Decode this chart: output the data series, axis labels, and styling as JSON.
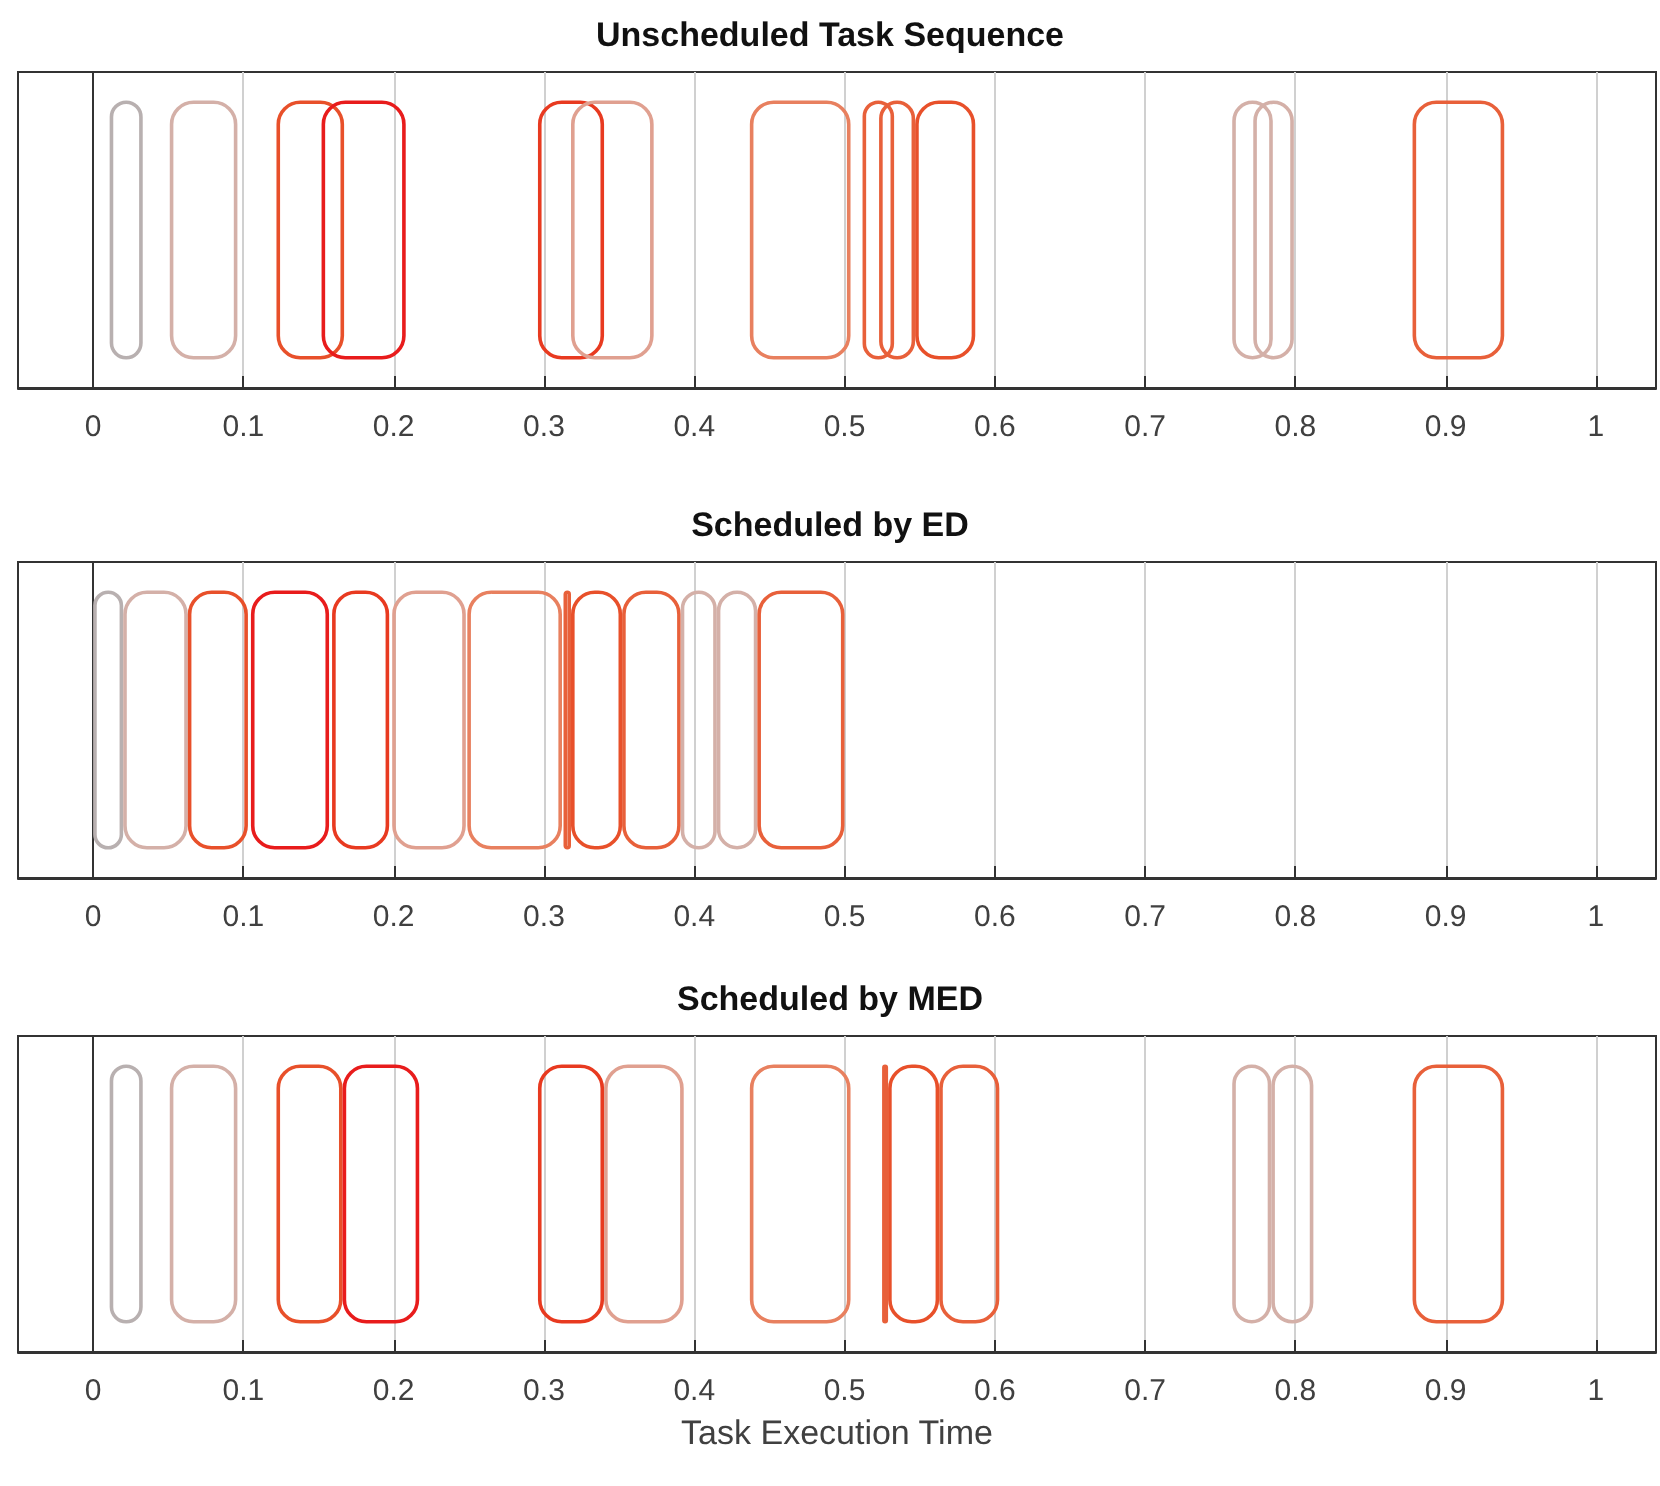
{
  "chart_data": [
    {
      "type": "bar",
      "orientation": "horizontal",
      "title": "Unscheduled Task Sequence",
      "categories": [
        null
      ],
      "xlim": [
        -0.05,
        1.04
      ],
      "xticks": [
        0,
        0.1,
        0.2,
        0.3,
        0.4,
        0.5,
        0.6,
        0.7,
        0.8,
        0.9,
        1
      ],
      "grid": "x",
      "tick_labels": "x",
      "series": [
        {
          "color": "#b8b0b0",
          "base": [
            0.011
          ],
          "values": [
            0.022
          ]
        },
        {
          "color": "#d4b0a8",
          "base": [
            0.051
          ],
          "values": [
            0.045
          ]
        },
        {
          "color": "#e8502a",
          "base": [
            0.122
          ],
          "values": [
            0.045
          ]
        },
        {
          "color": "#e81c1c",
          "base": [
            0.152
          ],
          "values": [
            0.056
          ]
        },
        {
          "color": "#e83a20",
          "base": [
            0.296
          ],
          "values": [
            0.044
          ]
        },
        {
          "color": "#e0a090",
          "base": [
            0.318
          ],
          "values": [
            0.055
          ]
        },
        {
          "color": "#e8805f",
          "base": [
            0.437
          ],
          "values": [
            0.067
          ]
        },
        {
          "color": "#e8603a",
          "base": [
            0.512
          ],
          "values": [
            0.021
          ]
        },
        {
          "color": "#e8603a",
          "base": [
            0.523
          ],
          "values": [
            0.024
          ]
        },
        {
          "color": "#e8502a",
          "base": [
            0.547
          ],
          "values": [
            0.04
          ]
        },
        {
          "color": "#d4b0a8",
          "base": [
            0.758
          ],
          "values": [
            0.027
          ]
        },
        {
          "color": "#d4b0a8",
          "base": [
            0.772
          ],
          "values": [
            0.027
          ]
        },
        {
          "color": "#e8603a",
          "base": [
            0.878
          ],
          "values": [
            0.061
          ]
        }
      ]
    },
    {
      "type": "bar",
      "orientation": "horizontal",
      "title": "Scheduled by ED",
      "categories": [
        null
      ],
      "xlim": [
        -0.05,
        1.04
      ],
      "xticks": [
        0,
        0.1,
        0.2,
        0.3,
        0.4,
        0.5,
        0.6,
        0.7,
        0.8,
        0.9,
        1
      ],
      "grid": "x",
      "tick_labels": "x",
      "series": [
        {
          "color": "#b8b0b0",
          "base": [
            0.0
          ],
          "values": [
            0.02
          ]
        },
        {
          "color": "#d4b0a8",
          "base": [
            0.02
          ],
          "values": [
            0.043
          ]
        },
        {
          "color": "#e8502a",
          "base": [
            0.063
          ],
          "values": [
            0.04
          ]
        },
        {
          "color": "#e81c1c",
          "base": [
            0.105
          ],
          "values": [
            0.052
          ]
        },
        {
          "color": "#e83a20",
          "base": [
            0.159
          ],
          "values": [
            0.038
          ]
        },
        {
          "color": "#e0a090",
          "base": [
            0.199
          ],
          "values": [
            0.049
          ]
        },
        {
          "color": "#e8805f",
          "base": [
            0.249
          ],
          "values": [
            0.063
          ]
        },
        {
          "color": "#e8603a",
          "base": [
            0.313
          ],
          "values": [
            0.005
          ]
        },
        {
          "color": "#e8502a",
          "base": [
            0.318
          ],
          "values": [
            0.034
          ]
        },
        {
          "color": "#e8603a",
          "base": [
            0.352
          ],
          "values": [
            0.039
          ]
        },
        {
          "color": "#d4b0a8",
          "base": [
            0.391
          ],
          "values": [
            0.024
          ]
        },
        {
          "color": "#d4b0a8",
          "base": [
            0.415
          ],
          "values": [
            0.027
          ]
        },
        {
          "color": "#e8603a",
          "base": [
            0.442
          ],
          "values": [
            0.058
          ]
        }
      ]
    },
    {
      "type": "bar",
      "orientation": "horizontal",
      "title": "Scheduled by MED",
      "xlabel": "Task Execution Time",
      "categories": [
        null
      ],
      "xlim": [
        -0.05,
        1.04
      ],
      "xticks": [
        0,
        0.1,
        0.2,
        0.3,
        0.4,
        0.5,
        0.6,
        0.7,
        0.8,
        0.9,
        1
      ],
      "grid": "x",
      "tick_labels": "x",
      "series": [
        {
          "color": "#b8b0b0",
          "base": [
            0.011
          ],
          "values": [
            0.022
          ]
        },
        {
          "color": "#d4b0a8",
          "base": [
            0.051
          ],
          "values": [
            0.045
          ]
        },
        {
          "color": "#e8502a",
          "base": [
            0.122
          ],
          "values": [
            0.044
          ]
        },
        {
          "color": "#e81c1c",
          "base": [
            0.166
          ],
          "values": [
            0.051
          ]
        },
        {
          "color": "#e83a20",
          "base": [
            0.296
          ],
          "values": [
            0.044
          ]
        },
        {
          "color": "#e0a090",
          "base": [
            0.34
          ],
          "values": [
            0.053
          ]
        },
        {
          "color": "#e8805f",
          "base": [
            0.437
          ],
          "values": [
            0.067
          ]
        },
        {
          "color": "#e8603a",
          "base": [
            0.525
          ],
          "values": [
            0.004
          ]
        },
        {
          "color": "#e8502a",
          "base": [
            0.529
          ],
          "values": [
            0.034
          ]
        },
        {
          "color": "#e8603a",
          "base": [
            0.563
          ],
          "values": [
            0.04
          ]
        },
        {
          "color": "#d4b0a8",
          "base": [
            0.758
          ],
          "values": [
            0.026
          ]
        },
        {
          "color": "#d4b0a8",
          "base": [
            0.784
          ],
          "values": [
            0.028
          ]
        },
        {
          "color": "#e8603a",
          "base": [
            0.878
          ],
          "values": [
            0.061
          ]
        }
      ]
    }
  ]
}
